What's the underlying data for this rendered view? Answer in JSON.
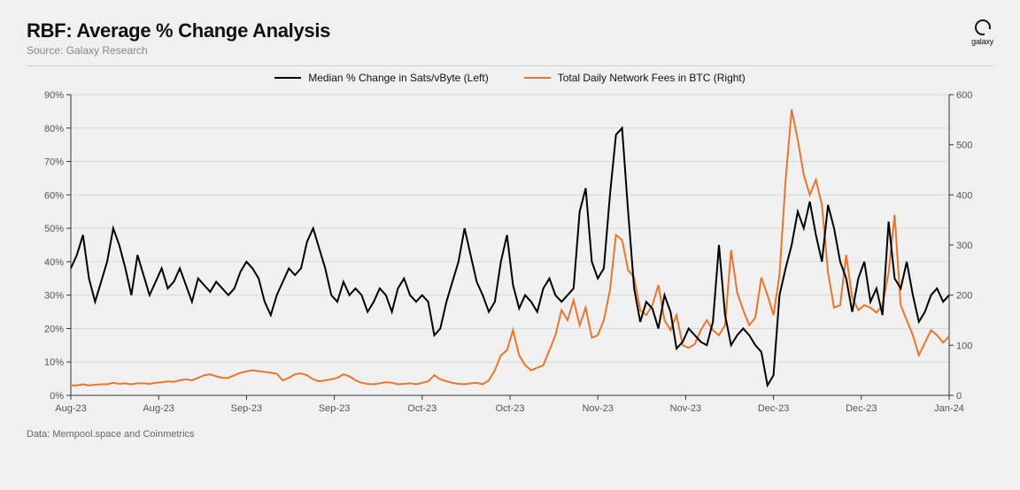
{
  "title": "RBF: Average % Change Analysis",
  "subtitle": "Source: Galaxy Research",
  "logo_text": "galaxy",
  "footer": "Data: Mempool.space and Coinmetrics",
  "legend": {
    "series1": {
      "label": "Median % Change in Sats/vByte (Left)",
      "color": "#000000"
    },
    "series2": {
      "label": "Total Daily Network Fees in BTC (Right)",
      "color": "#e8762d"
    }
  },
  "chart": {
    "type": "line",
    "background_color": "#f0f0f0",
    "grid_color": "#d9d9d9",
    "axis_color": "#333333",
    "line_width": 2,
    "label_fontsize": 11,
    "y_left": {
      "min": 0,
      "max": 90,
      "tick_step": 10,
      "ticks": [
        "0%",
        "10%",
        "20%",
        "30%",
        "40%",
        "50%",
        "60%",
        "70%",
        "80%",
        "90%"
      ]
    },
    "y_right": {
      "min": 0,
      "max": 600,
      "tick_step": 100,
      "ticks": [
        "0",
        "100",
        "200",
        "300",
        "400",
        "500",
        "600"
      ]
    },
    "x_ticks": [
      "Aug-23",
      "Aug-23",
      "Sep-23",
      "Sep-23",
      "Oct-23",
      "Oct-23",
      "Nov-23",
      "Nov-23",
      "Dec-23",
      "Dec-23",
      "Jan-24"
    ],
    "series1_values": [
      38,
      42,
      48,
      35,
      28,
      34,
      40,
      50,
      45,
      38,
      30,
      42,
      36,
      30,
      34,
      38,
      32,
      34,
      38,
      33,
      28,
      35,
      33,
      31,
      34,
      32,
      30,
      32,
      37,
      40,
      38,
      35,
      28,
      24,
      30,
      34,
      38,
      36,
      38,
      46,
      50,
      44,
      38,
      30,
      28,
      34,
      30,
      32,
      30,
      25,
      28,
      32,
      30,
      25,
      32,
      35,
      30,
      28,
      30,
      28,
      18,
      20,
      28,
      34,
      40,
      50,
      42,
      34,
      30,
      25,
      28,
      40,
      48,
      33,
      26,
      30,
      28,
      25,
      32,
      35,
      30,
      28,
      30,
      32,
      55,
      62,
      40,
      35,
      38,
      60,
      78,
      80,
      55,
      32,
      22,
      28,
      26,
      20,
      30,
      25,
      14,
      16,
      20,
      18,
      16,
      15,
      22,
      45,
      24,
      15,
      18,
      20,
      18,
      15,
      13,
      3,
      6,
      30,
      38,
      45,
      55,
      50,
      58,
      48,
      40,
      57,
      50,
      40,
      35,
      25,
      35,
      40,
      28,
      32,
      24,
      52,
      35,
      32,
      40,
      30,
      22,
      25,
      30,
      32,
      28,
      30
    ],
    "series2_values": [
      20,
      20,
      22,
      20,
      21,
      22,
      22,
      25,
      23,
      24,
      22,
      24,
      24,
      23,
      25,
      26,
      28,
      27,
      30,
      32,
      30,
      35,
      40,
      42,
      38,
      35,
      35,
      40,
      45,
      48,
      50,
      48,
      47,
      45,
      43,
      30,
      35,
      42,
      44,
      40,
      32,
      28,
      30,
      32,
      35,
      42,
      38,
      30,
      25,
      23,
      22,
      24,
      26,
      25,
      22,
      23,
      24,
      22,
      25,
      28,
      40,
      32,
      28,
      25,
      23,
      22,
      24,
      25,
      22,
      30,
      50,
      80,
      90,
      130,
      80,
      60,
      50,
      55,
      60,
      90,
      120,
      170,
      150,
      190,
      140,
      175,
      115,
      120,
      150,
      210,
      320,
      310,
      250,
      235,
      170,
      160,
      180,
      220,
      150,
      130,
      160,
      100,
      95,
      102,
      130,
      150,
      130,
      120,
      140,
      290,
      205,
      170,
      140,
      155,
      235,
      200,
      160,
      240,
      430,
      570,
      510,
      440,
      400,
      430,
      380,
      245,
      175,
      180,
      280,
      195,
      170,
      180,
      175,
      165,
      180,
      245,
      360,
      180,
      150,
      120,
      80,
      105,
      130,
      120,
      105,
      118
    ],
    "n_points": 146
  }
}
